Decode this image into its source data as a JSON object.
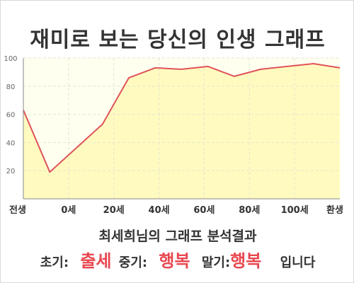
{
  "chart_data": {
    "type": "area",
    "title": "재미로 보는 당신의 인생 그래프",
    "x_labels": [
      "전생",
      "0세",
      "20세",
      "40세",
      "60세",
      "80세",
      "100세",
      "환생"
    ],
    "y_ticks": [
      20,
      40,
      60,
      80,
      100
    ],
    "ylim": [
      0,
      100
    ],
    "series": [
      {
        "x": [
          "전생",
          "0세",
          "10세",
          "20세",
          "30세",
          "40세",
          "50세",
          "60세",
          "70세",
          "80세",
          "90세",
          "100세",
          "환생"
        ],
        "values": [
          63,
          19,
          36,
          53,
          86,
          93,
          92,
          94,
          87,
          92,
          94,
          96,
          93
        ]
      }
    ],
    "grid": true,
    "colors": {
      "line": "#e0535a",
      "fill": "#fffbc0",
      "plot_bg": "#fffff0"
    }
  },
  "result": {
    "title": "최세희님의 그래프 분석결과",
    "early_label": "초기:",
    "early_value": "출세",
    "mid_label": "중기:",
    "mid_value": "행복",
    "late_label": "말기:",
    "late_value": "행복",
    "suffix": "입니다"
  }
}
